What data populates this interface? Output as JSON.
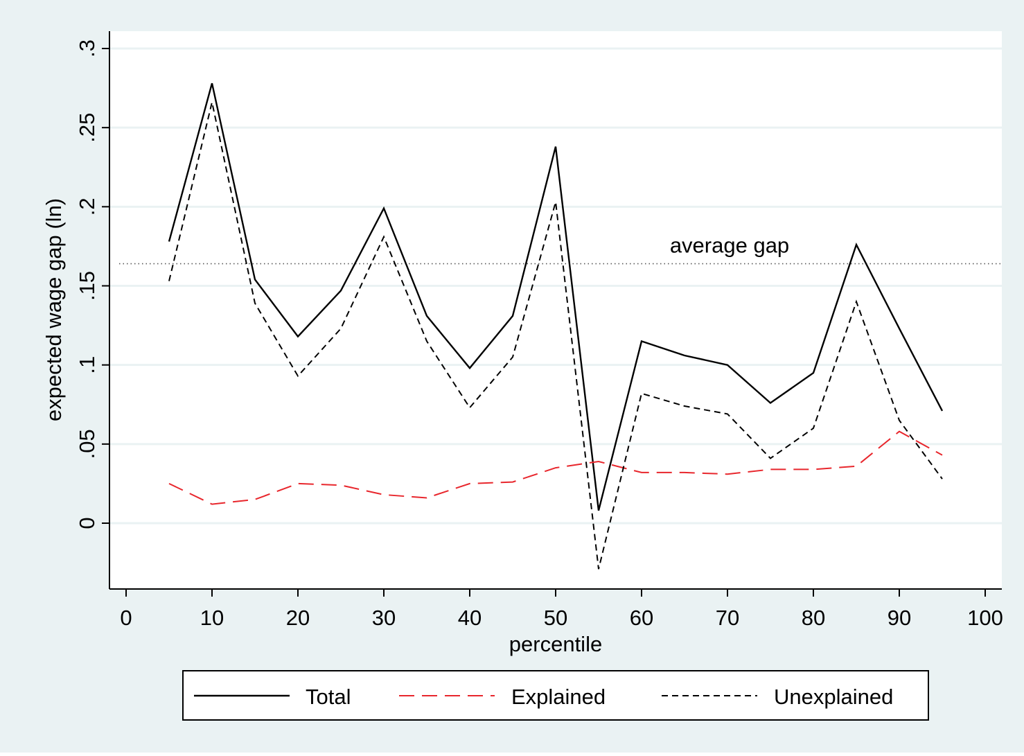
{
  "chart_data": {
    "type": "line",
    "title": "",
    "xlabel": "percentile",
    "ylabel": "expected wage gap (ln)",
    "xlim": [
      0,
      100
    ],
    "ylim": [
      -0.04,
      0.3
    ],
    "x_ticks": [
      0,
      10,
      20,
      30,
      40,
      50,
      60,
      70,
      80,
      90,
      100
    ],
    "x_tick_labels": [
      "0",
      "10",
      "20",
      "30",
      "40",
      "50",
      "60",
      "70",
      "80",
      "90",
      "100"
    ],
    "y_ticks": [
      0,
      0.05,
      0.1,
      0.15,
      0.2,
      0.25,
      0.3
    ],
    "y_tick_labels": [
      "0",
      ".05",
      ".1",
      ".15",
      ".2",
      ".25",
      ".3"
    ],
    "grid": true,
    "legend_position": "bottom",
    "x": [
      5,
      10,
      15,
      20,
      25,
      30,
      35,
      40,
      45,
      50,
      55,
      60,
      65,
      70,
      75,
      80,
      85,
      90,
      95
    ],
    "series": [
      {
        "name": "Total",
        "color": "#000000",
        "style": "solid",
        "values": [
          0.178,
          0.278,
          0.154,
          0.118,
          0.147,
          0.199,
          0.131,
          0.098,
          0.131,
          0.238,
          0.008,
          0.115,
          0.106,
          0.1,
          0.076,
          0.095,
          0.176,
          0.123,
          0.071
        ]
      },
      {
        "name": "Explained",
        "color": "#e8262c",
        "style": "dashed",
        "values": [
          0.025,
          0.012,
          0.015,
          0.025,
          0.024,
          0.018,
          0.016,
          0.025,
          0.026,
          0.035,
          0.039,
          0.032,
          0.032,
          0.031,
          0.034,
          0.034,
          0.036,
          0.058,
          0.043
        ]
      },
      {
        "name": "Unexplained",
        "color": "#000000",
        "style": "short-dash",
        "values": [
          0.153,
          0.266,
          0.139,
          0.093,
          0.123,
          0.181,
          0.115,
          0.073,
          0.105,
          0.203,
          -0.029,
          0.082,
          0.074,
          0.069,
          0.041,
          0.06,
          0.14,
          0.065,
          0.028
        ]
      }
    ],
    "reference_line": {
      "y": 0.164,
      "label": "average gap",
      "style": "dotted",
      "color": "#555555"
    }
  },
  "colors": {
    "outer_background": "#eaf2f3",
    "plot_background": "#ffffff",
    "gridline": "#eaf2f3",
    "axis": "#000000"
  }
}
